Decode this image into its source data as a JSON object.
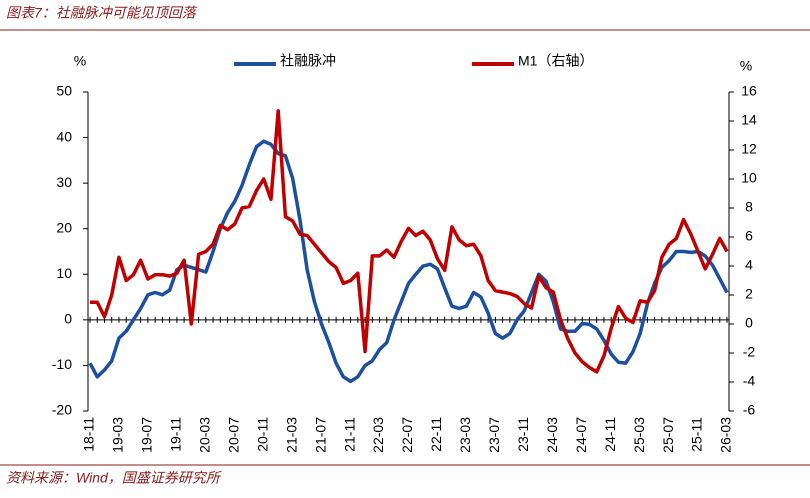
{
  "chart_data": {
    "type": "line",
    "title": "图表7：社融脉冲可能见顶回落",
    "source": "资料来源：Wind，国盛证券研究所",
    "y_label": "%",
    "y2_label": "%",
    "categories": [
      "18-11",
      null,
      null,
      null,
      "19-03",
      null,
      null,
      null,
      "19-07",
      null,
      null,
      null,
      "19-11",
      null,
      null,
      null,
      "20-03",
      null,
      null,
      null,
      "20-07",
      null,
      null,
      null,
      "20-11",
      null,
      null,
      null,
      "21-03",
      null,
      null,
      null,
      "21-07",
      null,
      null,
      null,
      "21-11",
      null,
      null,
      null,
      "22-03",
      null,
      null,
      null,
      "22-07",
      null,
      null,
      null,
      "22-11",
      null,
      null,
      null,
      "23-03",
      null,
      null,
      null,
      "23-07",
      null,
      null,
      null,
      "23-11",
      null,
      null,
      null,
      "24-03",
      null,
      null,
      null,
      "24-07",
      null,
      null,
      null,
      "24-11",
      null,
      null,
      null,
      "25-03",
      null,
      null,
      null,
      "25-07",
      null,
      null,
      null,
      "25-11",
      null,
      null,
      null,
      "26-03"
    ],
    "series": [
      {
        "name": "社融脉冲",
        "color": "#1c4fa0",
        "values": [
          -9.5,
          -12.5,
          -11,
          -9,
          -4,
          -2.5,
          0,
          2.5,
          5.5,
          6,
          5.5,
          6.5,
          11,
          12,
          11.5,
          11,
          10.5,
          15,
          20,
          23.5,
          26,
          29.5,
          34,
          38,
          39.2,
          38.5,
          36.5,
          36,
          31,
          22,
          11,
          4,
          -1,
          -5,
          -9.5,
          -12.5,
          -13.5,
          -12.5,
          -10,
          -9,
          -6.5,
          -5,
          0,
          4,
          8,
          10,
          11.8,
          12.2,
          11.2,
          7,
          3,
          2.5,
          3,
          6,
          5,
          1.5,
          -3,
          -4,
          -3,
          0,
          2,
          6,
          10,
          8.5,
          4,
          -2,
          -2.5,
          -2.5,
          -0.8,
          -1,
          -2,
          -4.5,
          -7.5,
          -9.3,
          -9.5,
          -7,
          -3,
          3.5,
          8,
          11.5,
          13,
          15,
          15,
          14.8,
          15,
          14,
          12,
          9,
          6
        ]
      },
      {
        "name": "M1（右轴）",
        "color": "#c00000",
        "axis": "y2",
        "values": [
          1.5,
          1.5,
          0.5,
          2,
          4.6,
          3,
          3.4,
          4.4,
          3.1,
          3.4,
          3.4,
          3.3,
          3.5,
          4.4,
          0,
          4.8,
          5,
          5.5,
          6.8,
          6.5,
          6.9,
          8,
          8.1,
          9.2,
          10,
          8.6,
          14.7,
          7.4,
          7.1,
          6.2,
          6.1,
          5.5,
          4.9,
          4.3,
          3.9,
          2.8,
          3,
          3.5,
          -1.9,
          4.7,
          4.7,
          5.1,
          4.6,
          5.7,
          6.6,
          6.1,
          6.4,
          5.8,
          4.5,
          3.7,
          6.7,
          5.8,
          5.4,
          5.5,
          4.7,
          3,
          2.3,
          2.2,
          2.1,
          1.9,
          1.4,
          1.1,
          3.3,
          2.5,
          2.2,
          0.3,
          -1,
          -2,
          -2.6,
          -3,
          -3.3,
          -2.2,
          -0.3,
          1.2,
          0.4,
          0.1,
          1.6,
          1.5,
          2.3,
          4.6,
          5.5,
          5.9,
          7.2,
          6.2,
          5,
          3.8,
          4.8,
          5.9,
          5
        ]
      }
    ],
    "ylim": [
      -20,
      50
    ],
    "yticks": [
      -20,
      -10,
      0,
      10,
      20,
      30,
      40,
      50
    ],
    "y2lim": [
      -6,
      16
    ],
    "y2ticks": [
      -6,
      -4,
      -2,
      0,
      2,
      4,
      6,
      8,
      10,
      12,
      14,
      16
    ],
    "grid": false,
    "legend": "top"
  }
}
